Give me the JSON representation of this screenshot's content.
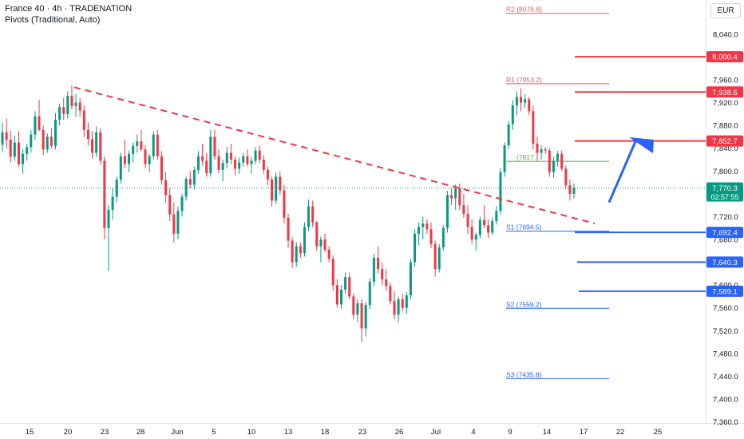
{
  "header": {
    "title": "France 40 · 4h · TRADENATION",
    "indicator": "Pivots (Traditional, Auto)"
  },
  "currency": "EUR",
  "colors": {
    "bull": "#089981",
    "bear": "#f23645",
    "resistance": "#f23645",
    "support": "#2962ff",
    "trendline": "#f23645",
    "arrow": "#2962ff",
    "pivot_resistance": "#f7525f",
    "pivot_support": "#2962ff",
    "pivot_mid": "#4caf50",
    "price_label": "#089981"
  },
  "chart_data": {
    "type": "candlestick",
    "timeframe": "4h",
    "ylim": [
      7330,
      8100
    ],
    "y_ticks": [
      "8,040.0",
      "7,960.0",
      "7,920.0",
      "7,880.0",
      "7,840.0",
      "7,800.0",
      "7,720.0",
      "7,680.0",
      "7,600.0",
      "7,560.0",
      "7,520.0",
      "7,480.0",
      "7,440.0",
      "7,400.0",
      "7,360.0"
    ],
    "x_ticks": [
      "15",
      "20",
      "23",
      "28",
      "Jun",
      "5",
      "10",
      "13",
      "18",
      "23",
      "26",
      "Jul",
      "4",
      "9",
      "14",
      "17",
      "22",
      "25"
    ],
    "current_price": {
      "value": "7,770.3",
      "countdown": "02:57:55",
      "price": 7770.3
    },
    "pivots": [
      {
        "label": "R2 (8076.6)",
        "value": 8076.6,
        "kind": "resistance"
      },
      {
        "label": "R1 (7953.2)",
        "value": 7953.2,
        "kind": "resistance"
      },
      {
        "label": "(7817.",
        "value": 7817.0,
        "kind": "mid"
      },
      {
        "label": "S1 (7694.5)",
        "value": 7694.5,
        "kind": "support"
      },
      {
        "label": "S2 (7559.2)",
        "value": 7559.2,
        "kind": "support"
      },
      {
        "label": "S3 (7435.8)",
        "value": 7435.8,
        "kind": "support"
      }
    ],
    "levels": [
      {
        "label": "8,000.4",
        "value": 8000.4,
        "kind": "resistance"
      },
      {
        "label": "7,938.6",
        "value": 7938.6,
        "kind": "resistance"
      },
      {
        "label": "7,852.7",
        "value": 7852.7,
        "kind": "resistance"
      },
      {
        "label": "7,692.4",
        "value": 7692.4,
        "kind": "support"
      },
      {
        "label": "7,640.3",
        "value": 7640.3,
        "kind": "support"
      },
      {
        "label": "7,589.1",
        "value": 7589.1,
        "kind": "support"
      }
    ],
    "trendline": {
      "start": {
        "date": "May 20",
        "price": 7947
      },
      "end": {
        "date": "Jul 20",
        "price": 7708
      }
    },
    "arrow": {
      "start": {
        "date": "Jul 18",
        "price": 7745
      },
      "end": {
        "date": "Jul 20",
        "price": 7855
      }
    },
    "candles_ohlc": [
      [
        7846,
        7885,
        7833,
        7868
      ],
      [
        7868,
        7892,
        7840,
        7855
      ],
      [
        7855,
        7870,
        7815,
        7825
      ],
      [
        7825,
        7862,
        7818,
        7850
      ],
      [
        7850,
        7870,
        7808,
        7812
      ],
      [
        7812,
        7838,
        7795,
        7830
      ],
      [
        7830,
        7848,
        7818,
        7842
      ],
      [
        7842,
        7872,
        7832,
        7864
      ],
      [
        7864,
        7905,
        7855,
        7896
      ],
      [
        7896,
        7925,
        7870,
        7872
      ],
      [
        7872,
        7880,
        7828,
        7838
      ],
      [
        7838,
        7866,
        7832,
        7860
      ],
      [
        7860,
        7875,
        7840,
        7844
      ],
      [
        7844,
        7902,
        7838,
        7890
      ],
      [
        7890,
        7918,
        7880,
        7912
      ],
      [
        7912,
        7928,
        7890,
        7900
      ],
      [
        7900,
        7940,
        7892,
        7932
      ],
      [
        7932,
        7950,
        7908,
        7914
      ],
      [
        7914,
        7935,
        7895,
        7920
      ],
      [
        7920,
        7928,
        7895,
        7906
      ],
      [
        7906,
        7915,
        7860,
        7872
      ],
      [
        7872,
        7885,
        7845,
        7856
      ],
      [
        7856,
        7870,
        7822,
        7832
      ],
      [
        7832,
        7878,
        7825,
        7868
      ],
      [
        7868,
        7875,
        7812,
        7818
      ],
      [
        7818,
        7825,
        7680,
        7700
      ],
      [
        7700,
        7740,
        7625,
        7732
      ],
      [
        7732,
        7770,
        7715,
        7755
      ],
      [
        7755,
        7790,
        7745,
        7785
      ],
      [
        7785,
        7832,
        7778,
        7826
      ],
      [
        7826,
        7855,
        7805,
        7812
      ],
      [
        7812,
        7836,
        7798,
        7830
      ],
      [
        7830,
        7850,
        7815,
        7844
      ],
      [
        7844,
        7864,
        7832,
        7852
      ],
      [
        7852,
        7872,
        7835,
        7838
      ],
      [
        7838,
        7845,
        7805,
        7812
      ],
      [
        7812,
        7830,
        7798,
        7826
      ],
      [
        7826,
        7870,
        7820,
        7864
      ],
      [
        7864,
        7872,
        7820,
        7826
      ],
      [
        7826,
        7835,
        7776,
        7784
      ],
      [
        7784,
        7798,
        7745,
        7758
      ],
      [
        7758,
        7770,
        7712,
        7724
      ],
      [
        7724,
        7745,
        7675,
        7690
      ],
      [
        7690,
        7738,
        7680,
        7730
      ],
      [
        7730,
        7760,
        7720,
        7755
      ],
      [
        7755,
        7790,
        7748,
        7786
      ],
      [
        7786,
        7800,
        7770,
        7776
      ],
      [
        7776,
        7808,
        7768,
        7802
      ],
      [
        7802,
        7835,
        7795,
        7826
      ],
      [
        7826,
        7848,
        7810,
        7818
      ],
      [
        7818,
        7832,
        7790,
        7796
      ],
      [
        7796,
        7872,
        7790,
        7860
      ],
      [
        7860,
        7872,
        7820,
        7826
      ],
      [
        7826,
        7838,
        7796,
        7802
      ],
      [
        7802,
        7820,
        7782,
        7814
      ],
      [
        7814,
        7842,
        7805,
        7832
      ],
      [
        7832,
        7848,
        7812,
        7820
      ],
      [
        7820,
        7826,
        7792,
        7804
      ],
      [
        7804,
        7824,
        7795,
        7815
      ],
      [
        7815,
        7832,
        7808,
        7826
      ],
      [
        7826,
        7838,
        7808,
        7812
      ],
      [
        7812,
        7825,
        7795,
        7818
      ],
      [
        7818,
        7842,
        7812,
        7836
      ],
      [
        7836,
        7845,
        7814,
        7820
      ],
      [
        7820,
        7828,
        7795,
        7802
      ],
      [
        7802,
        7808,
        7775,
        7785
      ],
      [
        7785,
        7790,
        7738,
        7748
      ],
      [
        7748,
        7798,
        7742,
        7790
      ],
      [
        7790,
        7800,
        7758,
        7766
      ],
      [
        7766,
        7775,
        7708,
        7718
      ],
      [
        7718,
        7725,
        7665,
        7678
      ],
      [
        7678,
        7684,
        7630,
        7640
      ],
      [
        7640,
        7675,
        7632,
        7668
      ],
      [
        7668,
        7675,
        7648,
        7656
      ],
      [
        7656,
        7710,
        7650,
        7702
      ],
      [
        7702,
        7750,
        7695,
        7738
      ],
      [
        7738,
        7748,
        7702,
        7710
      ],
      [
        7710,
        7712,
        7660,
        7668
      ],
      [
        7668,
        7685,
        7640,
        7680
      ],
      [
        7680,
        7690,
        7658,
        7662
      ],
      [
        7662,
        7668,
        7640,
        7646
      ],
      [
        7646,
        7652,
        7590,
        7600
      ],
      [
        7600,
        7610,
        7560,
        7566
      ],
      [
        7566,
        7600,
        7558,
        7592
      ],
      [
        7592,
        7622,
        7585,
        7614
      ],
      [
        7614,
        7622,
        7575,
        7580
      ],
      [
        7580,
        7585,
        7540,
        7548
      ],
      [
        7548,
        7575,
        7535,
        7568
      ],
      [
        7568,
        7575,
        7500,
        7524
      ],
      [
        7524,
        7570,
        7510,
        7565
      ],
      [
        7565,
        7612,
        7558,
        7606
      ],
      [
        7606,
        7655,
        7598,
        7648
      ],
      [
        7648,
        7668,
        7620,
        7628
      ],
      [
        7628,
        7640,
        7600,
        7610
      ],
      [
        7610,
        7628,
        7590,
        7598
      ],
      [
        7598,
        7605,
        7566,
        7572
      ],
      [
        7572,
        7590,
        7540,
        7548
      ],
      [
        7548,
        7580,
        7535,
        7575
      ],
      [
        7575,
        7585,
        7555,
        7560
      ],
      [
        7560,
        7588,
        7550,
        7582
      ],
      [
        7582,
        7645,
        7575,
        7640
      ],
      [
        7640,
        7698,
        7632,
        7690
      ],
      [
        7690,
        7710,
        7670,
        7702
      ],
      [
        7702,
        7720,
        7680,
        7708
      ],
      [
        7708,
        7715,
        7690,
        7698
      ],
      [
        7698,
        7710,
        7665,
        7672
      ],
      [
        7672,
        7678,
        7615,
        7628
      ],
      [
        7628,
        7672,
        7622,
        7666
      ],
      [
        7666,
        7705,
        7660,
        7700
      ],
      [
        7700,
        7765,
        7692,
        7758
      ],
      [
        7758,
        7770,
        7740,
        7752
      ],
      [
        7752,
        7776,
        7732,
        7770
      ],
      [
        7770,
        7778,
        7732,
        7740
      ],
      [
        7740,
        7760,
        7718,
        7725
      ],
      [
        7725,
        7740,
        7690,
        7702
      ],
      [
        7702,
        7715,
        7672,
        7680
      ],
      [
        7680,
        7692,
        7660,
        7688
      ],
      [
        7688,
        7720,
        7682,
        7714
      ],
      [
        7714,
        7740,
        7700,
        7705
      ],
      [
        7705,
        7715,
        7682,
        7692
      ],
      [
        7692,
        7718,
        7688,
        7712
      ],
      [
        7712,
        7738,
        7706,
        7730
      ],
      [
        7730,
        7805,
        7724,
        7798
      ],
      [
        7798,
        7850,
        7790,
        7845
      ],
      [
        7845,
        7888,
        7838,
        7882
      ],
      [
        7882,
        7925,
        7872,
        7915
      ],
      [
        7915,
        7940,
        7898,
        7930
      ],
      [
        7930,
        7945,
        7905,
        7920
      ],
      [
        7920,
        7935,
        7910,
        7926
      ],
      [
        7926,
        7930,
        7898,
        7905
      ],
      [
        7905,
        7915,
        7838,
        7848
      ],
      [
        7848,
        7860,
        7818,
        7832
      ],
      [
        7832,
        7845,
        7820,
        7838
      ],
      [
        7838,
        7842,
        7830,
        7836
      ],
      [
        7836,
        7840,
        7790,
        7798
      ],
      [
        7798,
        7825,
        7788,
        7818
      ],
      [
        7818,
        7835,
        7808,
        7830
      ],
      [
        7830,
        7836,
        7800,
        7804
      ],
      [
        7804,
        7810,
        7768,
        7775
      ],
      [
        7775,
        7785,
        7748,
        7760
      ],
      [
        7760,
        7778,
        7752,
        7770
      ]
    ]
  }
}
